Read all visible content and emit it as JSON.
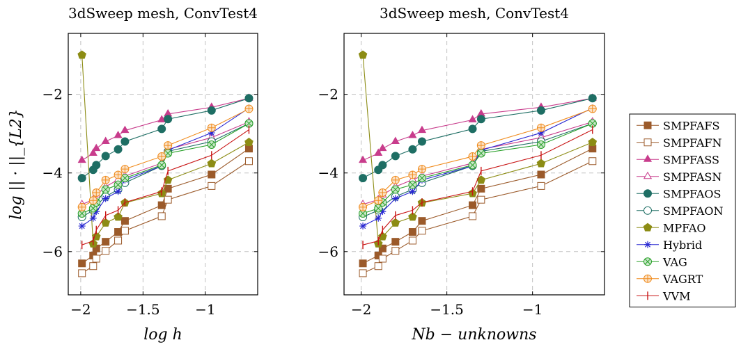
{
  "chart_data": [
    {
      "type": "line",
      "title": "3dSweep mesh, ConvTest4",
      "xlabel": "log h",
      "ylabel": "log || · ||_{L2}",
      "xlim": [
        -2.1,
        -0.58
      ],
      "ylim": [
        -7.1,
        -0.45
      ],
      "xticks": [
        -2,
        -1.5,
        -1
      ],
      "xtick_labels": [
        "−2",
        "−1.5",
        "−1"
      ],
      "yticks": [
        -2,
        -4,
        -6
      ],
      "ytick_labels": [
        "−2",
        "−4",
        "−6"
      ],
      "grid": true,
      "series": [
        {
          "name": "SMPFAFS",
          "color": "#9b5a2a",
          "marker": "square",
          "x": [
            -1.99,
            -1.9,
            -1.875,
            -1.8,
            -1.7,
            -1.645,
            -1.35,
            -1.3,
            -0.95,
            -0.65
          ],
          "y": [
            -6.3,
            -6.1,
            -5.92,
            -5.75,
            -5.5,
            -5.22,
            -4.82,
            -4.4,
            -4.04,
            -3.38
          ]
        },
        {
          "name": "SMPFAFN",
          "color": "#9b5a2a",
          "marker": "square-open",
          "x": [
            -1.99,
            -1.9,
            -1.875,
            -1.8,
            -1.7,
            -1.645,
            -1.35,
            -1.3,
            -0.95,
            -0.65
          ],
          "y": [
            -6.55,
            -6.37,
            -6.18,
            -5.98,
            -5.72,
            -5.47,
            -5.1,
            -4.68,
            -4.33,
            -3.7
          ]
        },
        {
          "name": "SMPFASS",
          "color": "#c83c8c",
          "marker": "triangle",
          "x": [
            -1.99,
            -1.9,
            -1.875,
            -1.8,
            -1.7,
            -1.645,
            -1.35,
            -1.3,
            -0.95,
            -0.65
          ],
          "y": [
            -3.68,
            -3.5,
            -3.38,
            -3.2,
            -3.05,
            -2.92,
            -2.65,
            -2.5,
            -2.33,
            -2.1
          ]
        },
        {
          "name": "SMPFASN",
          "color": "#c83c8c",
          "marker": "triangle-open",
          "x": [
            -1.99,
            -1.9,
            -1.875,
            -1.8,
            -1.7,
            -1.645,
            -1.35,
            -1.3,
            -0.95,
            -0.65
          ],
          "y": [
            -4.8,
            -4.68,
            -4.56,
            -4.35,
            -4.17,
            -4.08,
            -3.75,
            -3.4,
            -3.1,
            -2.7
          ]
        },
        {
          "name": "SMPFAOS",
          "color": "#1e6e64",
          "marker": "circle",
          "x": [
            -1.99,
            -1.9,
            -1.875,
            -1.8,
            -1.7,
            -1.645,
            -1.35,
            -1.3,
            -0.95,
            -0.65
          ],
          "y": [
            -4.13,
            -3.92,
            -3.8,
            -3.57,
            -3.4,
            -3.2,
            -2.88,
            -2.63,
            -2.41,
            -2.1
          ]
        },
        {
          "name": "SMPFAON",
          "color": "#1e6e64",
          "marker": "circle-open",
          "x": [
            -1.99,
            -1.9,
            -1.875,
            -1.8,
            -1.7,
            -1.645,
            -1.35,
            -1.3,
            -0.95,
            -0.65
          ],
          "y": [
            -5.12,
            -4.95,
            -4.83,
            -4.6,
            -4.42,
            -4.25,
            -3.82,
            -3.45,
            -3.2,
            -2.74
          ]
        },
        {
          "name": "MPFAO",
          "color": "#8c8c14",
          "marker": "pentagon",
          "x": [
            -1.99,
            -1.9,
            -1.875,
            -1.8,
            -1.7,
            -1.645,
            -1.35,
            -1.3,
            -0.95,
            -0.65
          ],
          "y": [
            -1.0,
            -5.8,
            -5.62,
            -5.27,
            -5.12,
            -4.76,
            -4.52,
            -4.18,
            -3.76,
            -3.22
          ]
        },
        {
          "name": "Hybrid",
          "color": "#2828d2",
          "marker": "star",
          "x": [
            -1.99,
            -1.9,
            -1.875,
            -1.8,
            -1.7,
            -1.645,
            -1.35,
            -1.3,
            -0.95,
            -0.65
          ],
          "y": [
            -5.35,
            -5.15,
            -4.98,
            -4.65,
            -4.47,
            -4.18,
            -3.82,
            -3.42,
            -2.98,
            -2.35
          ]
        },
        {
          "name": "VAG",
          "color": "#28a028",
          "marker": "otimes",
          "x": [
            -1.99,
            -1.9,
            -1.875,
            -1.8,
            -1.7,
            -1.645,
            -1.35,
            -1.3,
            -0.95,
            -0.65
          ],
          "y": [
            -5.03,
            -4.9,
            -4.75,
            -4.42,
            -4.3,
            -4.13,
            -3.8,
            -3.5,
            -3.28,
            -2.74
          ]
        },
        {
          "name": "VAGRT",
          "color": "#f08c1e",
          "marker": "oplus",
          "x": [
            -1.99,
            -1.9,
            -1.875,
            -1.8,
            -1.7,
            -1.645,
            -1.35,
            -1.3,
            -0.95,
            -0.65
          ],
          "y": [
            -4.87,
            -4.7,
            -4.5,
            -4.18,
            -4.05,
            -3.9,
            -3.58,
            -3.3,
            -2.85,
            -2.37
          ]
        },
        {
          "name": "VVM",
          "color": "#c81414",
          "marker": "bar",
          "x": [
            -1.99,
            -1.9,
            -1.875,
            -1.8,
            -1.7,
            -1.645,
            -1.35,
            -1.3,
            -0.95,
            -0.65
          ],
          "y": [
            -5.83,
            -5.73,
            -5.45,
            -5.08,
            -4.95,
            -4.75,
            -4.47,
            -3.95,
            -3.55,
            -2.9
          ]
        }
      ]
    },
    {
      "type": "line",
      "title": "3dSweep mesh, ConvTest4",
      "xlabel": "Nb − unknowns",
      "ylabel": "",
      "xlim": [
        -2.1,
        -0.58
      ],
      "ylim": [
        -7.1,
        -0.45
      ],
      "xticks": [
        -2,
        -1.5,
        -1
      ],
      "xtick_labels": [
        "−2",
        "−1.5",
        "−1"
      ],
      "yticks": [
        -2,
        -4,
        -6
      ],
      "ytick_labels": [
        "−2",
        "−4",
        "−6"
      ],
      "grid": true,
      "series": [
        {
          "name": "SMPFAFS",
          "color": "#9b5a2a",
          "marker": "square",
          "x": [
            -1.99,
            -1.9,
            -1.875,
            -1.8,
            -1.7,
            -1.645,
            -1.35,
            -1.3,
            -0.95,
            -0.65
          ],
          "y": [
            -6.3,
            -6.1,
            -5.92,
            -5.75,
            -5.5,
            -5.22,
            -4.82,
            -4.4,
            -4.04,
            -3.38
          ]
        },
        {
          "name": "SMPFAFN",
          "color": "#9b5a2a",
          "marker": "square-open",
          "x": [
            -1.99,
            -1.9,
            -1.875,
            -1.8,
            -1.7,
            -1.645,
            -1.35,
            -1.3,
            -0.95,
            -0.65
          ],
          "y": [
            -6.55,
            -6.37,
            -6.18,
            -5.98,
            -5.72,
            -5.47,
            -5.1,
            -4.68,
            -4.33,
            -3.7
          ]
        },
        {
          "name": "SMPFASS",
          "color": "#c83c8c",
          "marker": "triangle",
          "x": [
            -1.99,
            -1.9,
            -1.875,
            -1.8,
            -1.7,
            -1.645,
            -1.35,
            -1.3,
            -0.95,
            -0.65
          ],
          "y": [
            -3.68,
            -3.5,
            -3.38,
            -3.2,
            -3.05,
            -2.92,
            -2.65,
            -2.5,
            -2.33,
            -2.1
          ]
        },
        {
          "name": "SMPFASN",
          "color": "#c83c8c",
          "marker": "triangle-open",
          "x": [
            -1.99,
            -1.9,
            -1.875,
            -1.8,
            -1.7,
            -1.645,
            -1.35,
            -1.3,
            -0.95,
            -0.65
          ],
          "y": [
            -4.8,
            -4.68,
            -4.56,
            -4.35,
            -4.17,
            -4.08,
            -3.75,
            -3.4,
            -3.1,
            -2.7
          ]
        },
        {
          "name": "SMPFAOS",
          "color": "#1e6e64",
          "marker": "circle",
          "x": [
            -1.99,
            -1.9,
            -1.875,
            -1.8,
            -1.7,
            -1.645,
            -1.35,
            -1.3,
            -0.95,
            -0.65
          ],
          "y": [
            -4.13,
            -3.92,
            -3.8,
            -3.57,
            -3.4,
            -3.2,
            -2.88,
            -2.63,
            -2.41,
            -2.1
          ]
        },
        {
          "name": "SMPFAON",
          "color": "#1e6e64",
          "marker": "circle-open",
          "x": [
            -1.99,
            -1.9,
            -1.875,
            -1.8,
            -1.7,
            -1.645,
            -1.35,
            -1.3,
            -0.95,
            -0.65
          ],
          "y": [
            -5.12,
            -4.95,
            -4.83,
            -4.6,
            -4.42,
            -4.25,
            -3.82,
            -3.45,
            -3.2,
            -2.74
          ]
        },
        {
          "name": "MPFAO",
          "color": "#8c8c14",
          "marker": "pentagon",
          "x": [
            -1.99,
            -1.9,
            -1.875,
            -1.8,
            -1.7,
            -1.645,
            -1.35,
            -1.3,
            -0.95,
            -0.65
          ],
          "y": [
            -1.0,
            -5.8,
            -5.62,
            -5.27,
            -5.12,
            -4.76,
            -4.52,
            -4.18,
            -3.76,
            -3.22
          ]
        },
        {
          "name": "Hybrid",
          "color": "#2828d2",
          "marker": "star",
          "x": [
            -1.99,
            -1.9,
            -1.875,
            -1.8,
            -1.7,
            -1.645,
            -1.35,
            -1.3,
            -0.95,
            -0.65
          ],
          "y": [
            -5.35,
            -5.15,
            -4.98,
            -4.65,
            -4.47,
            -4.18,
            -3.82,
            -3.42,
            -2.98,
            -2.35
          ]
        },
        {
          "name": "VAG",
          "color": "#28a028",
          "marker": "otimes",
          "x": [
            -1.99,
            -1.9,
            -1.875,
            -1.8,
            -1.7,
            -1.645,
            -1.35,
            -1.3,
            -0.95,
            -0.65
          ],
          "y": [
            -5.03,
            -4.9,
            -4.75,
            -4.42,
            -4.3,
            -4.13,
            -3.8,
            -3.5,
            -3.28,
            -2.74
          ]
        },
        {
          "name": "VAGRT",
          "color": "#f08c1e",
          "marker": "oplus",
          "x": [
            -1.99,
            -1.9,
            -1.875,
            -1.8,
            -1.7,
            -1.645,
            -1.35,
            -1.3,
            -0.95,
            -0.65
          ],
          "y": [
            -4.87,
            -4.7,
            -4.5,
            -4.18,
            -4.05,
            -3.9,
            -3.58,
            -3.3,
            -2.85,
            -2.37
          ]
        },
        {
          "name": "VVM",
          "color": "#c81414",
          "marker": "bar",
          "x": [
            -1.99,
            -1.9,
            -1.875,
            -1.8,
            -1.7,
            -1.645,
            -1.35,
            -1.3,
            -0.95,
            -0.65
          ],
          "y": [
            -5.83,
            -5.73,
            -5.45,
            -5.08,
            -4.95,
            -4.75,
            -4.47,
            -3.95,
            -3.55,
            -2.9
          ]
        }
      ]
    }
  ],
  "legend": {
    "placement": "right",
    "entries": [
      "SMPFAFS",
      "SMPFAFN",
      "SMPFASS",
      "SMPFASN",
      "SMPFAOS",
      "SMPFAON",
      "MPFAO",
      "Hybrid",
      "VAG",
      "VAGRT",
      "VVM"
    ]
  }
}
